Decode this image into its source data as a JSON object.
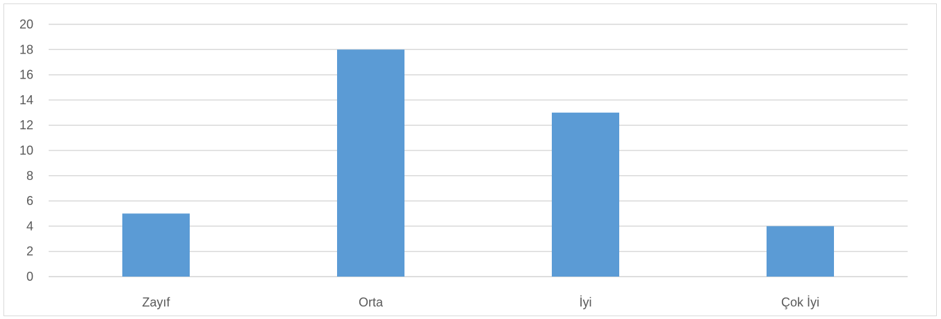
{
  "chart_data": {
    "type": "bar",
    "title": "",
    "xlabel": "",
    "ylabel": "",
    "categories": [
      "Zayıf",
      "Orta",
      "İyi",
      "Çok İyi"
    ],
    "values": [
      5,
      18,
      13,
      4
    ],
    "ylim": [
      0,
      20
    ],
    "yticks": [
      0,
      2,
      4,
      6,
      8,
      10,
      12,
      14,
      16,
      18,
      20
    ],
    "grid": true,
    "legend": "none",
    "bar_color": "#5b9bd5"
  }
}
